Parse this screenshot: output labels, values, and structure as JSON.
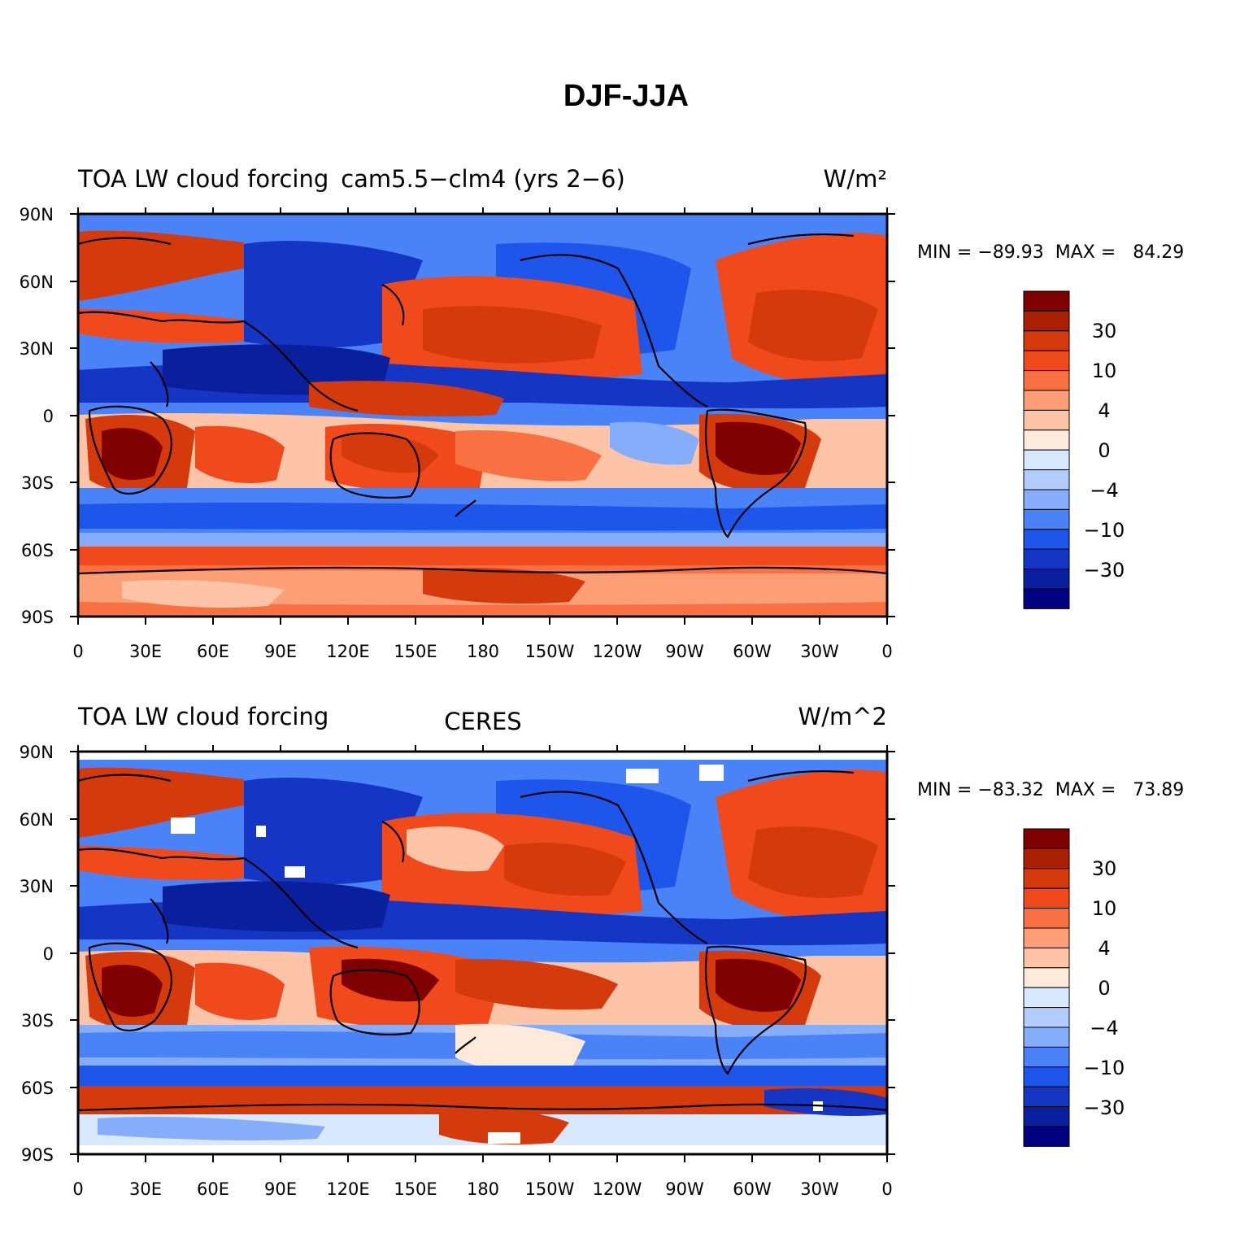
{
  "figure_title": "DJF-JJA",
  "lon_tick_labels": [
    "0",
    "30E",
    "60E",
    "90E",
    "120E",
    "150E",
    "180",
    "150W",
    "120W",
    "90W",
    "60W",
    "30W",
    "0"
  ],
  "lat_tick_labels": [
    "90N",
    "60N",
    "30N",
    "0",
    "30S",
    "60S",
    "90S"
  ],
  "colorbar": {
    "colors": [
      "#000080",
      "#0a1f9c",
      "#1535c4",
      "#1e55ea",
      "#4a83f7",
      "#86adfa",
      "#b2ccfc",
      "#d8e8fe",
      "#fdeadb",
      "#fdc4a8",
      "#fc9e76",
      "#f97143",
      "#f04a1c",
      "#d43a0c",
      "#a81f04",
      "#7e0000"
    ],
    "labels": [
      "30",
      "10",
      "4",
      "0",
      "−4",
      "−10",
      "−30"
    ]
  },
  "panels": [
    {
      "left_title": "TOA LW cloud forcing",
      "center_title": "cam5.5−clm4 (yrs 2−6)",
      "units": "W/m²",
      "min_max": "MIN = −89.93  MAX =   84.29"
    },
    {
      "left_title": "TOA LW cloud forcing",
      "center_title": "CERES",
      "units": "W/m^2",
      "min_max": "MIN = −83.32  MAX =   73.89"
    }
  ],
  "chart_data": {
    "type": "heatmap",
    "title": "DJF-JJA",
    "panels": [
      {
        "name": "cam5.5−clm4 (yrs 2−6)",
        "variable": "TOA LW cloud forcing",
        "units": "W/m²",
        "min": -89.93,
        "max": 84.29
      },
      {
        "name": "CERES",
        "variable": "TOA LW cloud forcing",
        "units": "W/m^2",
        "min": -83.32,
        "max": 73.89
      }
    ],
    "x_range": [
      "0",
      "0"
    ],
    "y_range": [
      "90S",
      "90N"
    ],
    "colorbar_levels": [
      -50,
      -40,
      -30,
      -20,
      -15,
      -10,
      -6,
      -4,
      -2,
      0,
      2,
      4,
      6,
      10,
      15,
      20,
      30,
      40,
      50
    ],
    "colorbar_tick_labels": [
      30,
      10,
      4,
      0,
      -4,
      -10,
      -30
    ]
  }
}
